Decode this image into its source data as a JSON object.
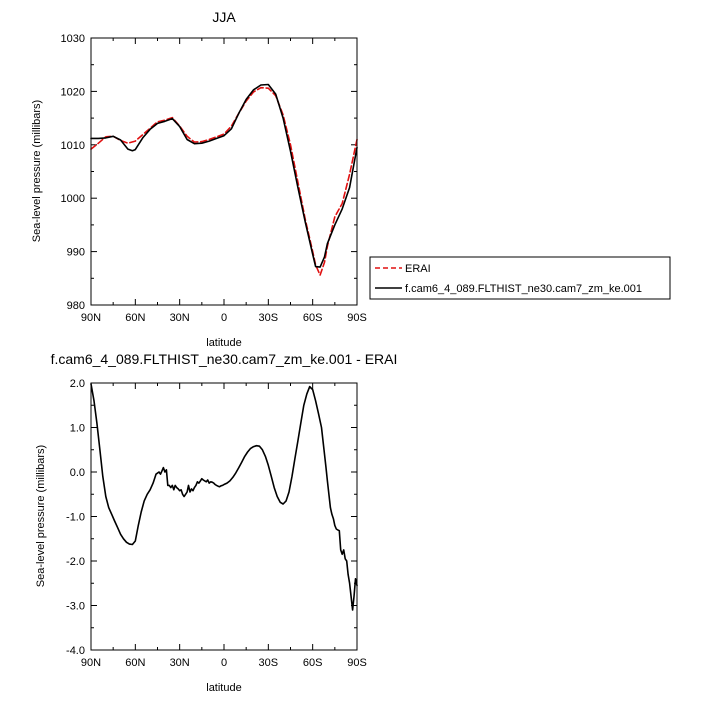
{
  "chart_data": [
    {
      "type": "line",
      "title": "JJA",
      "xlabel": "latitude",
      "ylabel": "Sea-level pressure (millibars)",
      "xlim": [
        90,
        -90
      ],
      "ylim": [
        980,
        1030
      ],
      "xticks": [
        {
          "value": 90,
          "label": "90N"
        },
        {
          "value": 60,
          "label": "60N"
        },
        {
          "value": 30,
          "label": "30N"
        },
        {
          "value": 0,
          "label": "0"
        },
        {
          "value": -30,
          "label": "30S"
        },
        {
          "value": -60,
          "label": "60S"
        },
        {
          "value": -90,
          "label": "90S"
        }
      ],
      "yticks": [
        980,
        990,
        1000,
        1010,
        1020,
        1030
      ],
      "legend": {
        "placement": "right-outside"
      },
      "series": [
        {
          "name": "ERAI",
          "color": "#e01010",
          "dash": "dashed",
          "x": [
            90,
            85,
            80,
            75,
            70,
            65,
            60,
            55,
            50,
            45,
            40,
            35,
            30,
            25,
            20,
            15,
            10,
            5,
            0,
            -5,
            -10,
            -15,
            -20,
            -25,
            -30,
            -35,
            -40,
            -45,
            -50,
            -55,
            -60,
            -62,
            -65,
            -68,
            -70,
            -75,
            -80,
            -85,
            -90
          ],
          "y": [
            1009.2,
            1010.3,
            1011.5,
            1011.6,
            1010.8,
            1010.3,
            1010.7,
            1011.9,
            1013.1,
            1014.3,
            1014.6,
            1015.1,
            1013.5,
            1011.6,
            1010.5,
            1010.6,
            1011.0,
            1011.5,
            1012.0,
            1013.5,
            1015.9,
            1018.2,
            1019.9,
            1020.7,
            1020.6,
            1019.2,
            1015.6,
            1010.0,
            1003.0,
            996.0,
            990.0,
            987.5,
            985.6,
            988.0,
            991.0,
            996.5,
            999.0,
            1004.5,
            1011.0
          ]
        },
        {
          "name": "f.cam6_4_089.FLTHIST_ne30.cam7_zm_ke.001",
          "color": "#000000",
          "dash": "solid",
          "x": [
            90,
            85,
            80,
            75,
            70,
            65,
            62,
            60,
            55,
            50,
            45,
            40,
            35,
            30,
            25,
            20,
            15,
            10,
            5,
            0,
            -5,
            -10,
            -15,
            -20,
            -25,
            -30,
            -35,
            -40,
            -45,
            -50,
            -55,
            -60,
            -62,
            -65,
            -68,
            -70,
            -75,
            -80,
            -85,
            -90
          ],
          "y": [
            1011.2,
            1011.2,
            1011.3,
            1011.6,
            1010.9,
            1009.2,
            1008.9,
            1009.1,
            1011.3,
            1012.9,
            1014.0,
            1014.4,
            1014.9,
            1013.4,
            1011.0,
            1010.2,
            1010.3,
            1010.7,
            1011.2,
            1011.7,
            1013.0,
            1015.9,
            1018.5,
            1020.3,
            1021.2,
            1021.3,
            1019.5,
            1015.0,
            1008.8,
            1002.0,
            995.5,
            989.5,
            987.2,
            987.1,
            989.0,
            991.5,
            995.0,
            998.0,
            1002.0,
            1009.5
          ]
        }
      ]
    },
    {
      "type": "line",
      "title": "f.cam6_4_089.FLTHIST_ne30.cam7_zm_ke.001 - ERAI",
      "xlabel": "latitude",
      "ylabel": "Sea-level pressure (millibars)",
      "xlim": [
        90,
        -90
      ],
      "ylim": [
        -4.0,
        2.0
      ],
      "xticks": [
        {
          "value": 90,
          "label": "90N"
        },
        {
          "value": 60,
          "label": "60N"
        },
        {
          "value": 30,
          "label": "30N"
        },
        {
          "value": 0,
          "label": "0"
        },
        {
          "value": -30,
          "label": "30S"
        },
        {
          "value": -60,
          "label": "60S"
        },
        {
          "value": -90,
          "label": "90S"
        }
      ],
      "yticks": [
        {
          "value": 2.0,
          "label": "2.0"
        },
        {
          "value": 1.0,
          "label": "1.0"
        },
        {
          "value": 0.0,
          "label": "0.0"
        },
        {
          "value": -1.0,
          "label": "-1.0"
        },
        {
          "value": -2.0,
          "label": "-2.0"
        },
        {
          "value": -3.0,
          "label": "-3.0"
        },
        {
          "value": -4.0,
          "label": "-4.0"
        }
      ],
      "series": [
        {
          "color": "#000000",
          "dash": "solid",
          "x": [
            90,
            88,
            86,
            84,
            82,
            80,
            78,
            76,
            74,
            72,
            70,
            68,
            66,
            64,
            62,
            60,
            58,
            56,
            54,
            52,
            50,
            48,
            46,
            44,
            43,
            42,
            41,
            40,
            39,
            38,
            37,
            36,
            35,
            34,
            33,
            32,
            31,
            30,
            29,
            28,
            27,
            26,
            25,
            24,
            23,
            22,
            21,
            20,
            19,
            18,
            17,
            16,
            15,
            14,
            13,
            12,
            11,
            10,
            9,
            8,
            7,
            6,
            5,
            4,
            3,
            2,
            1,
            0,
            -2,
            -4,
            -6,
            -8,
            -10,
            -12,
            -14,
            -16,
            -18,
            -20,
            -22,
            -24,
            -26,
            -28,
            -30,
            -32,
            -34,
            -36,
            -38,
            -40,
            -42,
            -44,
            -46,
            -48,
            -50,
            -52,
            -54,
            -56,
            -58,
            -60,
            -62,
            -64,
            -66,
            -67,
            -68,
            -69,
            -70,
            -71,
            -72,
            -73,
            -74,
            -75,
            -76,
            -77,
            -78,
            -79,
            -80,
            -81,
            -82,
            -83,
            -84,
            -85,
            -86,
            -87,
            -88,
            -89,
            -90
          ],
          "y": [
            1.98,
            1.6,
            1.1,
            0.5,
            -0.1,
            -0.55,
            -0.8,
            -0.95,
            -1.1,
            -1.25,
            -1.4,
            -1.5,
            -1.58,
            -1.62,
            -1.63,
            -1.55,
            -1.2,
            -0.9,
            -0.65,
            -0.5,
            -0.4,
            -0.25,
            -0.05,
            0.0,
            -0.05,
            0.02,
            0.1,
            0.0,
            0.05,
            -0.3,
            -0.3,
            -0.35,
            -0.3,
            -0.4,
            -0.3,
            -0.35,
            -0.38,
            -0.42,
            -0.4,
            -0.5,
            -0.55,
            -0.5,
            -0.45,
            -0.3,
            -0.45,
            -0.38,
            -0.42,
            -0.35,
            -0.3,
            -0.22,
            -0.25,
            -0.2,
            -0.15,
            -0.18,
            -0.2,
            -0.22,
            -0.18,
            -0.25,
            -0.22,
            -0.23,
            -0.25,
            -0.28,
            -0.3,
            -0.32,
            -0.33,
            -0.31,
            -0.3,
            -0.28,
            -0.25,
            -0.2,
            -0.12,
            -0.02,
            0.1,
            0.22,
            0.35,
            0.45,
            0.53,
            0.57,
            0.59,
            0.58,
            0.5,
            0.35,
            0.15,
            -0.1,
            -0.35,
            -0.55,
            -0.68,
            -0.72,
            -0.65,
            -0.45,
            -0.1,
            0.3,
            0.7,
            1.1,
            1.5,
            1.75,
            1.92,
            1.85,
            1.6,
            1.3,
            1.0,
            0.7,
            0.4,
            0.1,
            -0.2,
            -0.5,
            -0.8,
            -0.95,
            -1.05,
            -1.2,
            -1.28,
            -1.3,
            -1.32,
            -1.75,
            -1.85,
            -1.75,
            -1.95,
            -2.0,
            -2.3,
            -2.5,
            -2.8,
            -3.1,
            -2.8,
            -2.4,
            -2.55
          ]
        }
      ]
    }
  ]
}
